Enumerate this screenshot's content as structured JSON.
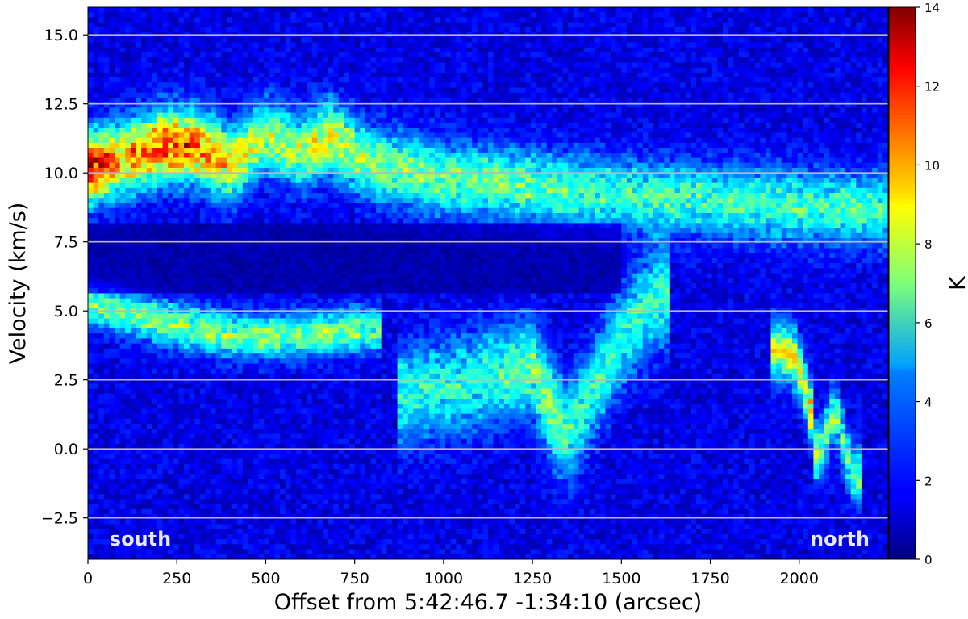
{
  "chart_data": {
    "type": "heatmap",
    "title": "",
    "xlabel": "Offset from 5:42:46.7 -1:34:10 (arcsec)",
    "ylabel": "Velocity (km/s)",
    "xlim": [
      0,
      2250
    ],
    "ylim": [
      -4,
      16
    ],
    "x_ticks": [
      0,
      250,
      500,
      750,
      1000,
      1250,
      1500,
      1750,
      2000
    ],
    "x_tick_labels": [
      "0",
      "250",
      "500",
      "750",
      "1000",
      "1250",
      "1500",
      "1750",
      "2000"
    ],
    "y_ticks": [
      -2.5,
      0.0,
      2.5,
      5.0,
      7.5,
      10.0,
      12.5,
      15.0
    ],
    "y_tick_labels": [
      "−2.5",
      "0.0",
      "2.5",
      "5.0",
      "7.5",
      "10.0",
      "12.5",
      "15.0"
    ],
    "grid": "horizontal lines at y ticks",
    "colormap": "jet",
    "colorbar": {
      "label": "K",
      "min": 0,
      "max": 14,
      "ticks": [
        0,
        2,
        4,
        6,
        8,
        10,
        12,
        14
      ],
      "tick_labels": [
        "0",
        "2",
        "4",
        "6",
        "8",
        "10",
        "12",
        "14"
      ]
    },
    "annotations": [
      {
        "text": "south",
        "x": 90,
        "y": -3.25
      },
      {
        "text": "north",
        "x": 2070,
        "y": -3.25
      }
    ],
    "emission_features": [
      {
        "component": "main ridge",
        "points": [
          [
            0,
            10.2,
            11.5
          ],
          [
            100,
            10.5,
            8.5
          ],
          [
            200,
            11.0,
            10.5
          ],
          [
            300,
            11.0,
            10.0
          ],
          [
            400,
            10.3,
            8.0
          ],
          [
            500,
            11.3,
            6.5
          ],
          [
            600,
            10.8,
            6.5
          ],
          [
            680,
            11.3,
            7.5
          ],
          [
            800,
            10.3,
            6.0
          ],
          [
            1000,
            9.8,
            5.5
          ],
          [
            1250,
            9.5,
            5.5
          ],
          [
            1500,
            9.2,
            5.0
          ],
          [
            1750,
            9.0,
            5.0
          ],
          [
            2000,
            8.8,
            5.0
          ],
          [
            2250,
            8.7,
            5.0
          ]
        ]
      },
      {
        "component": "5 km/s arc",
        "points": [
          [
            0,
            5.3,
            5.5
          ],
          [
            200,
            4.6,
            6.0
          ],
          [
            400,
            4.1,
            6.0
          ],
          [
            600,
            4.1,
            5.5
          ],
          [
            750,
            4.3,
            6.0
          ],
          [
            800,
            4.3,
            5.5
          ]
        ]
      },
      {
        "component": "central broad emission",
        "points": [
          [
            900,
            2.0,
            4.5
          ],
          [
            1100,
            2.5,
            4.5
          ],
          [
            1250,
            3.0,
            5.5
          ],
          [
            1300,
            1.5,
            6.0
          ],
          [
            1350,
            0.5,
            5.0
          ],
          [
            1500,
            4.0,
            4.5
          ],
          [
            1600,
            5.5,
            5.0
          ]
        ]
      },
      {
        "component": "north source",
        "points": [
          [
            1950,
            3.5,
            7.0
          ],
          [
            1980,
            3.5,
            8.0
          ],
          [
            2010,
            2.5,
            6.5
          ],
          [
            2040,
            1.0,
            9.5
          ],
          [
            2050,
            -0.5,
            5.5
          ],
          [
            2100,
            1.5,
            5.5
          ],
          [
            2150,
            -1.0,
            5.0
          ]
        ]
      }
    ]
  }
}
